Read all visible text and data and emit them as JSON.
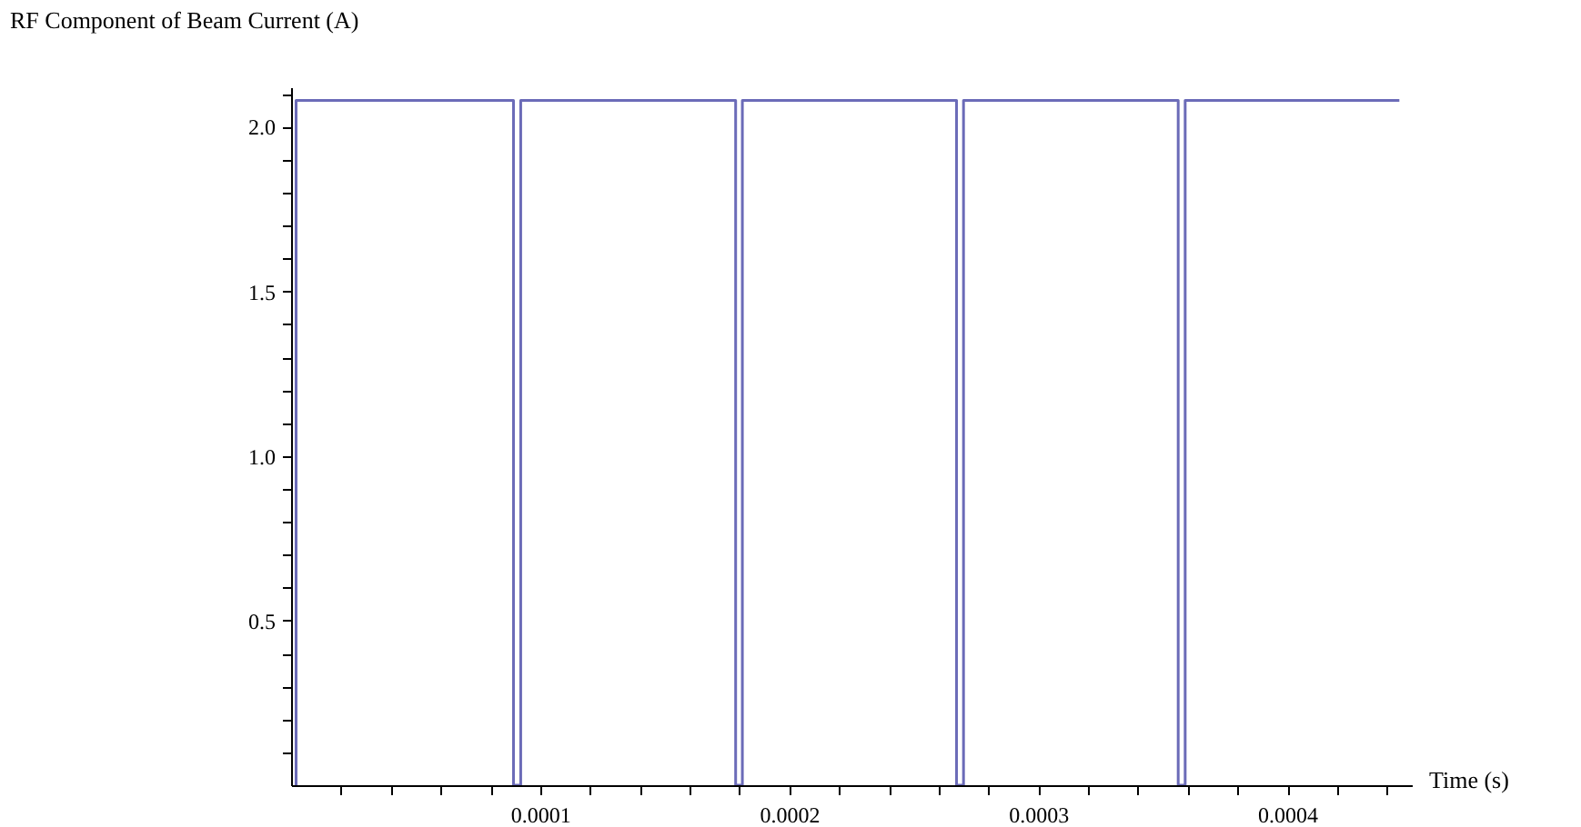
{
  "chart_data": {
    "type": "line",
    "xlabel": "Time (s)",
    "ylabel": "RF Component of Beam Current (A)",
    "x": [
      2e-06,
      2e-06,
      8.93e-05,
      8.93e-05,
      9.22e-05,
      9.22e-05,
      0.0001785,
      0.0001785,
      0.0001812,
      0.0001812,
      0.0002672,
      0.0002672,
      0.00027,
      0.00027,
      0.0003562,
      0.0003562,
      0.000359,
      0.000359,
      0.000445
    ],
    "series": [
      {
        "color": "#6b6bb8",
        "values": [
          0,
          2.08,
          2.08,
          0,
          0,
          2.08,
          2.08,
          0,
          0,
          2.08,
          2.08,
          0,
          0,
          2.08,
          2.08,
          0,
          0,
          2.08,
          2.08
        ]
      }
    ],
    "xlim": [
      0,
      0.00045
    ],
    "ylim": [
      0,
      2.12
    ],
    "xticks": [
      {
        "value": 2e-05,
        "label": null
      },
      {
        "value": 4e-05,
        "label": null
      },
      {
        "value": 6e-05,
        "label": null
      },
      {
        "value": 8e-05,
        "label": null
      },
      {
        "value": 0.0001,
        "label": "0.0001"
      },
      {
        "value": 0.00012,
        "label": null
      },
      {
        "value": 0.00014,
        "label": null
      },
      {
        "value": 0.00016,
        "label": null
      },
      {
        "value": 0.00018,
        "label": null
      },
      {
        "value": 0.0002,
        "label": "0.0002"
      },
      {
        "value": 0.00022,
        "label": null
      },
      {
        "value": 0.00024,
        "label": null
      },
      {
        "value": 0.00026,
        "label": null
      },
      {
        "value": 0.00028,
        "label": null
      },
      {
        "value": 0.0003,
        "label": "0.0003"
      },
      {
        "value": 0.00032,
        "label": null
      },
      {
        "value": 0.00034,
        "label": null
      },
      {
        "value": 0.00036,
        "label": null
      },
      {
        "value": 0.00038,
        "label": null
      },
      {
        "value": 0.0004,
        "label": "0.0004"
      },
      {
        "value": 0.00042,
        "label": null
      },
      {
        "value": 0.00044,
        "label": null
      }
    ],
    "yticks": [
      {
        "value": 0.1,
        "label": null
      },
      {
        "value": 0.2,
        "label": null
      },
      {
        "value": 0.3,
        "label": null
      },
      {
        "value": 0.4,
        "label": null
      },
      {
        "value": 0.5,
        "label": "0.5"
      },
      {
        "value": 0.6,
        "label": null
      },
      {
        "value": 0.7,
        "label": null
      },
      {
        "value": 0.8,
        "label": null
      },
      {
        "value": 0.9,
        "label": null
      },
      {
        "value": 1.0,
        "label": "1.0"
      },
      {
        "value": 1.1,
        "label": null
      },
      {
        "value": 1.2,
        "label": null
      },
      {
        "value": 1.3,
        "label": null
      },
      {
        "value": 1.4,
        "label": null
      },
      {
        "value": 1.5,
        "label": "1.5"
      },
      {
        "value": 1.6,
        "label": null
      },
      {
        "value": 1.7,
        "label": null
      },
      {
        "value": 1.8,
        "label": null
      },
      {
        "value": 1.9,
        "label": null
      },
      {
        "value": 2.0,
        "label": "2.0"
      },
      {
        "value": 2.1,
        "label": null
      }
    ],
    "grid": false,
    "marker": "none",
    "line_style": "solid"
  }
}
